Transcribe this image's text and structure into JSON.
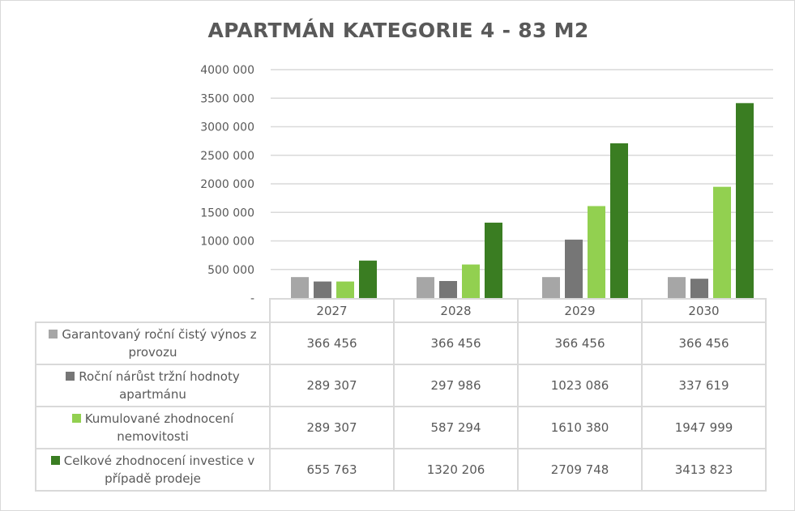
{
  "chart_data": {
    "type": "bar",
    "title": "APARTMÁN KATEGORIE 4 - 83 M2",
    "categories": [
      "2027",
      "2028",
      "2029",
      "2030"
    ],
    "ylim": [
      0,
      4000000
    ],
    "yticks": [
      "-",
      "500 000",
      "1000 000",
      "1500 000",
      "2000 000",
      "2500 000",
      "3000 000",
      "3500 000",
      "4000 000"
    ],
    "grid": true,
    "legend": "data-table",
    "series": [
      {
        "name": "Garantovaný roční čistý výnos z provozu",
        "color": "#a6a6a6",
        "values": [
          366456,
          366456,
          366456,
          366456
        ],
        "labels": [
          "366 456",
          "366 456",
          "366 456",
          "366 456"
        ]
      },
      {
        "name": "Roční nárůst tržní hodnoty apartmánu",
        "color": "#767676",
        "values": [
          289307,
          297986,
          1023086,
          337619
        ],
        "labels": [
          "289 307",
          "297 986",
          "1023 086",
          "337 619"
        ]
      },
      {
        "name": "Kumulované zhodnocení nemovitosti",
        "color": "#92d050",
        "values": [
          289307,
          587294,
          1610380,
          1947999
        ],
        "labels": [
          "289 307",
          "587 294",
          "1610 380",
          "1947 999"
        ]
      },
      {
        "name": "Celkové zhodnocení investice v případě prodeje",
        "color": "#3a7d22",
        "values": [
          655763,
          1320206,
          2709748,
          3413823
        ],
        "labels": [
          "655 763",
          "1320 206",
          "2709 748",
          "3413 823"
        ]
      }
    ]
  }
}
